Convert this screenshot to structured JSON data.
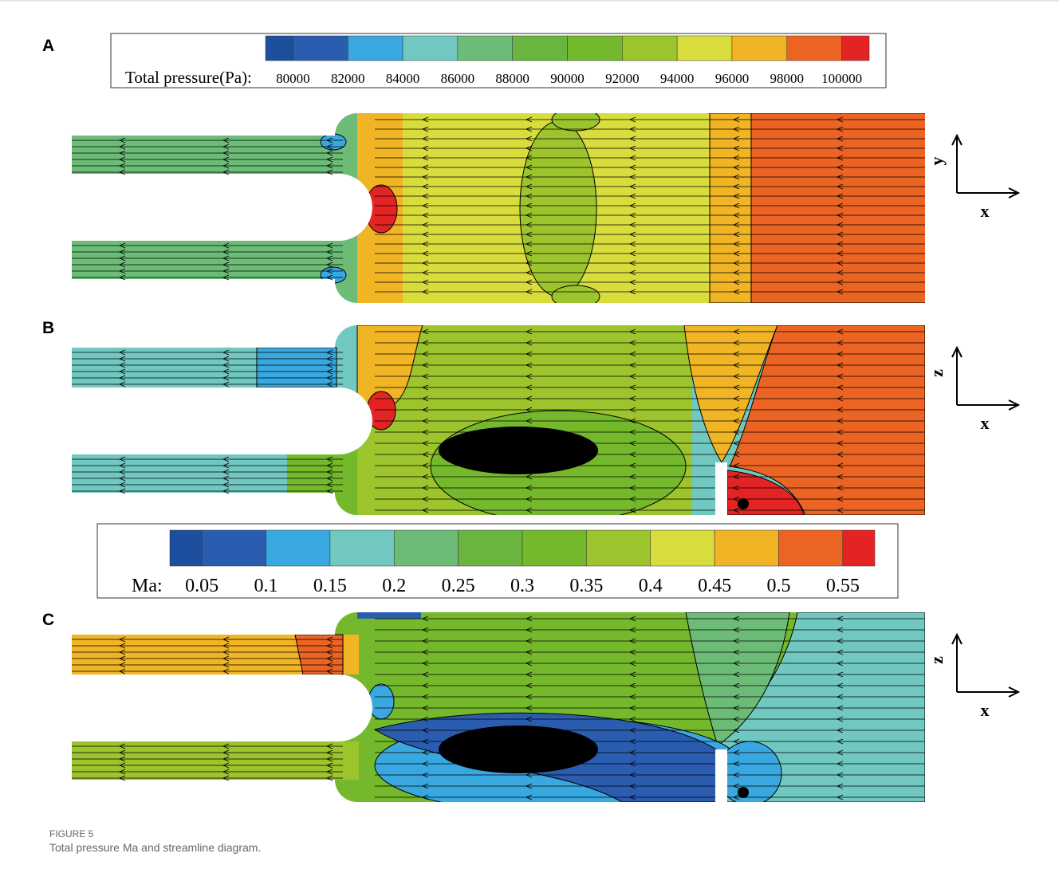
{
  "panels": [
    {
      "label": "A",
      "axes": {
        "vertical": "y",
        "horizontal": "x"
      }
    },
    {
      "label": "B",
      "axes": {
        "vertical": "z",
        "horizontal": "x"
      }
    },
    {
      "label": "C",
      "axes": {
        "vertical": "z",
        "horizontal": "x"
      }
    }
  ],
  "colorbars": [
    {
      "title": "Total pressure(Pa):",
      "ticks": [
        80000,
        82000,
        84000,
        86000,
        88000,
        90000,
        92000,
        94000,
        96000,
        98000,
        100000
      ],
      "colors": [
        "#1d4f9e",
        "#2a5cb0",
        "#3aa8e0",
        "#70c8c0",
        "#6cbc78",
        "#6ab440",
        "#74b82c",
        "#9cc42c",
        "#d8dc3c",
        "#f0b424",
        "#ec6424",
        "#e42424"
      ]
    },
    {
      "title": "Ma:",
      "ticks": [
        0.05,
        0.1,
        0.15,
        0.2,
        0.25,
        0.3,
        0.35,
        0.4,
        0.45,
        0.5,
        0.55
      ],
      "colors": [
        "#1d4f9e",
        "#2a5cb0",
        "#3aa8e0",
        "#70c8c0",
        "#6cbc78",
        "#6ab440",
        "#74b82c",
        "#9cc42c",
        "#d8dc3c",
        "#f0b424",
        "#ec6424",
        "#e42424"
      ]
    }
  ],
  "caption": {
    "label": "FIGURE 5",
    "text": "Total pressure Ma and streamline diagram."
  }
}
